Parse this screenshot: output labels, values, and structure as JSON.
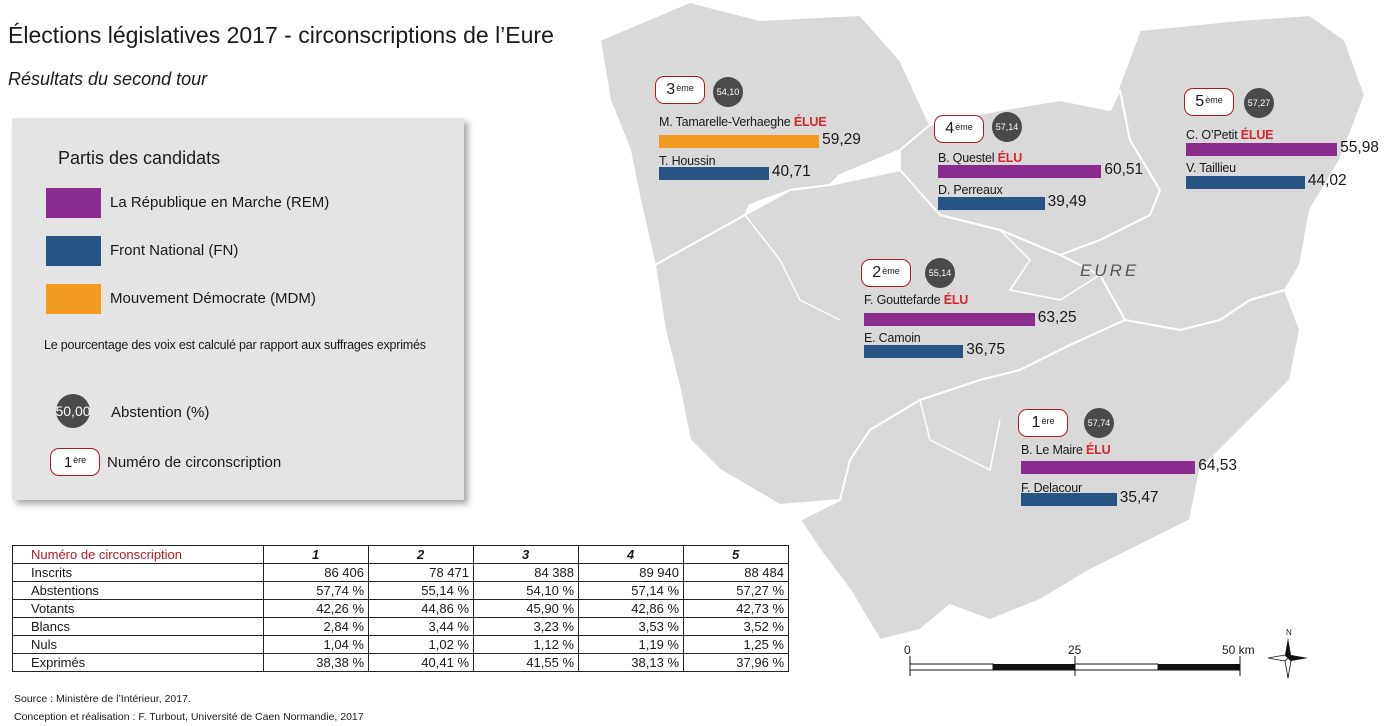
{
  "title": "Élections législatives 2017 - circonscriptions de l’Eure",
  "subtitle": "Résultats du second tour",
  "map_label": "EURE",
  "colors": {
    "rem": "#8a2c8e",
    "fn": "#275482",
    "mdm": "#f39a21",
    "map_fill": "#d9d9d9",
    "map_stroke": "#ffffff",
    "elected": "#d8252d",
    "circ_border": "#b01c1c",
    "abstention": "#4a4a4a"
  },
  "legend": {
    "title": "Partis des candidats",
    "parties": [
      {
        "label": "La République en Marche (REM)",
        "color": "#8a2c8e"
      },
      {
        "label": "Front National (FN)",
        "color": "#275482"
      },
      {
        "label": "Mouvement Démocrate (MDM)",
        "color": "#f39a21"
      }
    ],
    "note": "Le pourcentage des voix est calculé par rapport aux suffrages exprimés",
    "abstention_sample": "50,00",
    "abstention_label": "Abstention (%)",
    "circ_sample_num": "1",
    "circ_sample_sup": "ère",
    "circ_label": "Numéro de circonscription"
  },
  "districts": [
    {
      "num": "3",
      "sup": "ème",
      "abstention": "54,10",
      "candidates": [
        {
          "name": "M. Tamarelle-Verhaeghe",
          "elected": "ÉLUE",
          "party": "mdm",
          "value": "59,29",
          "pct": 59.29
        },
        {
          "name": "T. Houssin",
          "elected": "",
          "party": "fn",
          "value": "40,71",
          "pct": 40.71
        }
      ]
    },
    {
      "num": "4",
      "sup": "ème",
      "abstention": "57,14",
      "candidates": [
        {
          "name": "B. Questel",
          "elected": "ÉLU",
          "party": "rem",
          "value": "60,51",
          "pct": 60.51
        },
        {
          "name": "D. Perreaux",
          "elected": "",
          "party": "fn",
          "value": "39,49",
          "pct": 39.49
        }
      ]
    },
    {
      "num": "5",
      "sup": "ème",
      "abstention": "57,27",
      "candidates": [
        {
          "name": "C. O’Petit",
          "elected": "ÉLUE",
          "party": "rem",
          "value": "55,98",
          "pct": 55.98
        },
        {
          "name": "V. Taillieu",
          "elected": "",
          "party": "fn",
          "value": "44,02",
          "pct": 44.02
        }
      ]
    },
    {
      "num": "2",
      "sup": "ème",
      "abstention": "55,14",
      "candidates": [
        {
          "name": "F. Gouttefarde",
          "elected": "ÉLU",
          "party": "rem",
          "value": "63,25",
          "pct": 63.25
        },
        {
          "name": "E. Camoin",
          "elected": "",
          "party": "fn",
          "value": "36,75",
          "pct": 36.75
        }
      ]
    },
    {
      "num": "1",
      "sup": "ère",
      "abstention": "57,74",
      "candidates": [
        {
          "name": "B. Le Maire",
          "elected": "ÉLU",
          "party": "rem",
          "value": "64,53",
          "pct": 64.53
        },
        {
          "name": "F. Delacour",
          "elected": "",
          "party": "fn",
          "value": "35,47",
          "pct": 35.47
        }
      ]
    }
  ],
  "table": {
    "header": [
      "Numéro de circonscription",
      "1",
      "2",
      "3",
      "4",
      "5"
    ],
    "rows": [
      [
        "Inscrits",
        "86 406",
        "78 471",
        "84 388",
        "89 940",
        "88 484"
      ],
      [
        "Abstentions",
        "57,74 %",
        "55,14 %",
        "54,10 %",
        "57,14 %",
        "57,27 %"
      ],
      [
        "Votants",
        "42,26 %",
        "44,86 %",
        "45,90 %",
        "42,86 %",
        "42,73 %"
      ],
      [
        "Blancs",
        "2,84 %",
        "3,44 %",
        "3,23 %",
        "3,53 %",
        "3,52 %"
      ],
      [
        "Nuls",
        "1,04 %",
        "1,02 %",
        "1,12 %",
        "1,19 %",
        "1,25 %"
      ],
      [
        "Exprimés",
        "38,38 %",
        "40,41 %",
        "41,55 %",
        "38,13 %",
        "37,96 %"
      ]
    ]
  },
  "scale": {
    "labels": [
      "0",
      "25",
      "50 km"
    ]
  },
  "north_label": "N",
  "source": "Source : Ministère de l’Intérieur, 2017.",
  "credit": "Conception et réalisation : F. Turbout, Université de Caen Normandie, 2017"
}
